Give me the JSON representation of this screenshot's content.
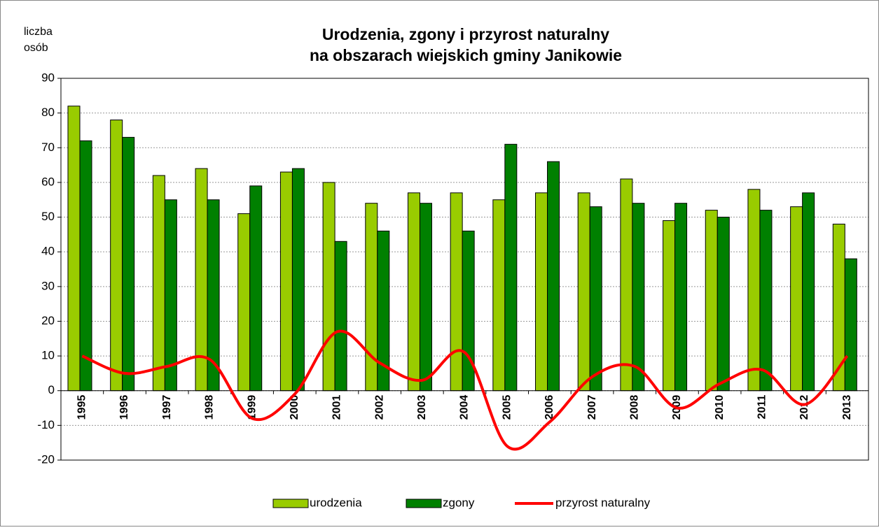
{
  "chart_data": {
    "type": "bar_line",
    "title": [
      "Urodzenia, zgony i przyrost naturalny",
      "na obszarach wiejskich gminy Janikowie"
    ],
    "y_label": [
      "liczba",
      "osób"
    ],
    "categories": [
      "1995",
      "1996",
      "1997",
      "1998",
      "1999",
      "2000",
      "2001",
      "2002",
      "2003",
      "2004",
      "2005",
      "2006",
      "2007",
      "2008",
      "2009",
      "2010",
      "2011",
      "2012",
      "2013"
    ],
    "series": [
      {
        "name": "urodzenia",
        "type": "bar",
        "color": "#99cc00",
        "values": [
          82,
          78,
          62,
          64,
          51,
          63,
          60,
          54,
          57,
          57,
          55,
          57,
          57,
          61,
          49,
          52,
          58,
          53,
          48
        ]
      },
      {
        "name": "zgony",
        "type": "bar",
        "color": "#008000",
        "values": [
          72,
          73,
          55,
          55,
          59,
          64,
          43,
          46,
          54,
          46,
          71,
          66,
          53,
          54,
          54,
          50,
          52,
          57,
          38
        ]
      },
      {
        "name": "przyrost naturalny",
        "type": "line",
        "color": "#ff0000",
        "values": [
          10,
          5,
          7,
          9,
          -8,
          -1,
          17,
          8,
          3,
          11,
          -16,
          -9,
          4,
          7,
          -5,
          2,
          6,
          -4,
          10
        ]
      }
    ],
    "ylim": [
      -20,
      90
    ],
    "yticks": [
      -20,
      -10,
      0,
      10,
      20,
      30,
      40,
      50,
      60,
      70,
      80,
      90
    ],
    "grid": true,
    "legend": "bottom"
  }
}
